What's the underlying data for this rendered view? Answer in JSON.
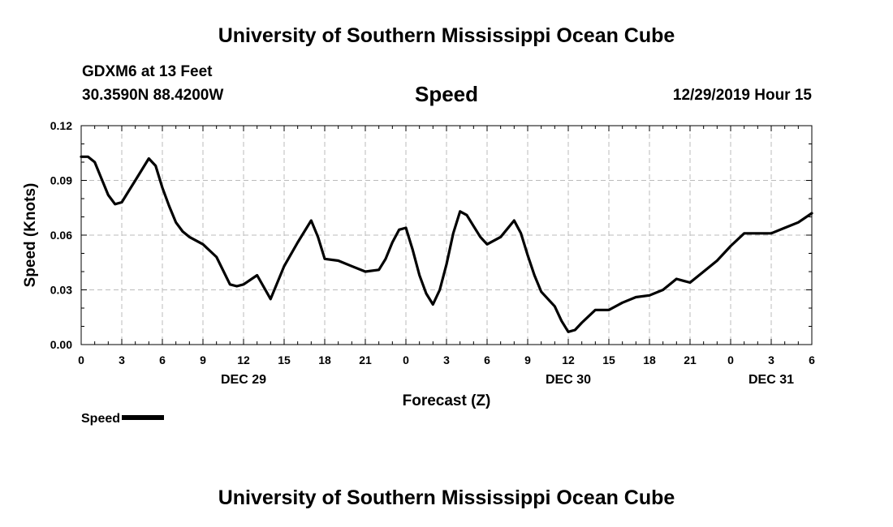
{
  "header": {
    "title": "University of Southern Mississippi Ocean Cube",
    "station": "GDXM6 at 13 Feet",
    "coordinates": "30.3590N 88.4200W",
    "chart_title": "Speed",
    "timestamp": "12/29/2019 Hour 15"
  },
  "footer": {
    "title": "University of Southern Mississippi Ocean Cube"
  },
  "legend": {
    "label": "Speed"
  },
  "colors": {
    "line": "#000000",
    "grid": "#bbbbbb",
    "background": "#ffffff"
  },
  "chart_data": {
    "type": "line",
    "title": "Speed",
    "xlabel": "Forecast (Z)",
    "ylabel": "Speed (Knots)",
    "grid": true,
    "legend_position": "bottom-left",
    "x_hours_range": [
      0,
      54
    ],
    "ylim": [
      0,
      0.12
    ],
    "y_ticks": [
      0,
      0.03,
      0.06,
      0.09,
      0.12
    ],
    "y_tick_labels": [
      "0.00",
      "0.03",
      "0.06",
      "0.09",
      "0.12"
    ],
    "x_ticks": [
      0,
      3,
      6,
      9,
      12,
      15,
      18,
      21,
      24,
      27,
      30,
      33,
      36,
      39,
      42,
      45,
      48,
      51,
      54
    ],
    "x_tick_labels": [
      "0",
      "3",
      "6",
      "9",
      "12",
      "15",
      "18",
      "21",
      "0",
      "3",
      "6",
      "9",
      "12",
      "15",
      "18",
      "21",
      "0",
      "3",
      "6"
    ],
    "date_labels": [
      {
        "hour": 12,
        "label": "DEC 29"
      },
      {
        "hour": 36,
        "label": "DEC 30"
      },
      {
        "hour": 51,
        "label": "DEC 31"
      }
    ],
    "series": [
      {
        "name": "Speed",
        "x": [
          0,
          0.5,
          1,
          1.5,
          2,
          2.5,
          3,
          3.5,
          4,
          4.5,
          5,
          5.5,
          6,
          6.5,
          7,
          7.5,
          8,
          9,
          10,
          11,
          11.5,
          12,
          13,
          14,
          15,
          16,
          17,
          17.5,
          18,
          19,
          20,
          21,
          22,
          22.5,
          23,
          23.5,
          24,
          24.5,
          25,
          25.5,
          26,
          26.5,
          27,
          27.5,
          28,
          28.5,
          29,
          29.5,
          30,
          31,
          32,
          32.5,
          33,
          33.5,
          34,
          34.5,
          35,
          35.5,
          36,
          36.5,
          37,
          38,
          39,
          40,
          41,
          42,
          43,
          44,
          44.5,
          45,
          46,
          47,
          48,
          49,
          50,
          51,
          52,
          53,
          54
        ],
        "values": [
          0.103,
          0.103,
          0.1,
          0.091,
          0.082,
          0.077,
          0.078,
          0.084,
          0.09,
          0.096,
          0.102,
          0.098,
          0.086,
          0.076,
          0.067,
          0.062,
          0.059,
          0.055,
          0.048,
          0.033,
          0.032,
          0.033,
          0.038,
          0.025,
          0.043,
          0.056,
          0.068,
          0.059,
          0.047,
          0.046,
          0.043,
          0.04,
          0.041,
          0.047,
          0.056,
          0.063,
          0.064,
          0.052,
          0.038,
          0.028,
          0.022,
          0.03,
          0.044,
          0.061,
          0.073,
          0.071,
          0.065,
          0.059,
          0.055,
          0.059,
          0.068,
          0.061,
          0.049,
          0.038,
          0.029,
          0.025,
          0.021,
          0.013,
          0.007,
          0.008,
          0.012,
          0.019,
          0.019,
          0.023,
          0.026,
          0.027,
          0.03,
          0.036,
          0.035,
          0.034,
          0.04,
          0.046,
          0.054,
          0.061,
          0.061,
          0.061,
          0.064,
          0.067,
          0.072
        ]
      }
    ]
  }
}
